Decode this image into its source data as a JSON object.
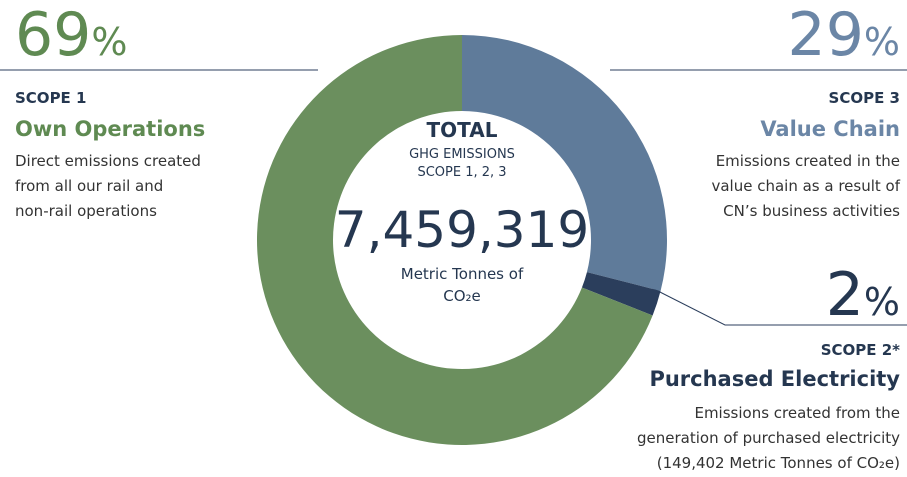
{
  "chart_data": {
    "type": "pie",
    "donut": true,
    "categories": [
      "Value Chain",
      "Purchased Electricity",
      "Own Operations"
    ],
    "scopes": [
      "SCOPE 3",
      "SCOPE 2*",
      "SCOPE 1"
    ],
    "descriptions": [
      [
        "Emissions created in the",
        "value chain as a result of",
        "CN’s business activities"
      ],
      [
        "Emissions created from the",
        "generation of purchased electricity",
        "(149,402 Metric Tonnes of CO₂e)"
      ],
      [
        "Direct emissions created",
        "from all our rail and",
        "non-rail operations"
      ]
    ],
    "values": [
      29,
      2,
      69
    ],
    "value_labels": [
      "29%",
      "2%",
      "69%"
    ],
    "colors": [
      "#5f7b9a",
      "#2b3e5c",
      "#6b8f5e"
    ],
    "center": {
      "heading": "TOTAL",
      "subheading": [
        "GHG EMISSIONS",
        "SCOPE 1, 2, 3"
      ],
      "total": "7,459,319",
      "unit": [
        "Metric Tonnes of",
        "CO₂e"
      ]
    }
  }
}
